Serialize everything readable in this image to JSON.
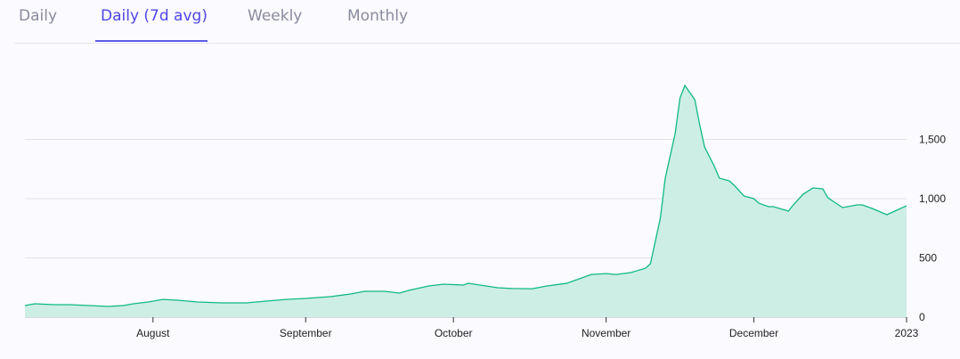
{
  "tabs": [
    {
      "label": "Daily",
      "active": false
    },
    {
      "label": "Daily (7d avg)",
      "active": true
    },
    {
      "label": "Weekly",
      "active": false
    },
    {
      "label": "Monthly",
      "active": false
    }
  ],
  "colors": {
    "accent": "#4f46e5",
    "line": "#10b981",
    "fill": "#cdeee5",
    "grid": "#e2e2ea"
  },
  "chart_data": {
    "type": "area",
    "title": "",
    "xlabel": "",
    "ylabel": "",
    "xlim": [
      "2022-07-06",
      "2023-01-01"
    ],
    "ylim": [
      0,
      2000
    ],
    "grid": true,
    "y_ticks": [
      {
        "value": 0,
        "label": "0"
      },
      {
        "value": 500,
        "label": "500"
      },
      {
        "value": 1000,
        "label": "1,000"
      },
      {
        "value": 1500,
        "label": "1,500"
      }
    ],
    "x_ticks": [
      {
        "date": "2022-08-01",
        "label": "August"
      },
      {
        "date": "2022-09-01",
        "label": "September"
      },
      {
        "date": "2022-10-01",
        "label": "October"
      },
      {
        "date": "2022-11-01",
        "label": "November"
      },
      {
        "date": "2022-12-01",
        "label": "December"
      },
      {
        "date": "2023-01-01",
        "label": "2023"
      }
    ],
    "series": [
      {
        "name": "Daily (7d avg)",
        "points": [
          [
            "2022-07-06",
            98
          ],
          [
            "2022-07-08",
            113
          ],
          [
            "2022-07-12",
            105
          ],
          [
            "2022-07-15",
            105
          ],
          [
            "2022-07-19",
            98
          ],
          [
            "2022-07-23",
            90
          ],
          [
            "2022-07-26",
            98
          ],
          [
            "2022-07-28",
            113
          ],
          [
            "2022-07-31",
            128
          ],
          [
            "2022-08-03",
            150
          ],
          [
            "2022-08-06",
            143
          ],
          [
            "2022-08-10",
            128
          ],
          [
            "2022-08-15",
            120
          ],
          [
            "2022-08-20",
            120
          ],
          [
            "2022-08-24",
            135
          ],
          [
            "2022-08-28",
            150
          ],
          [
            "2022-09-01",
            158
          ],
          [
            "2022-09-06",
            173
          ],
          [
            "2022-09-10",
            195
          ],
          [
            "2022-09-13",
            218
          ],
          [
            "2022-09-17",
            218
          ],
          [
            "2022-09-20",
            203
          ],
          [
            "2022-09-22",
            226
          ],
          [
            "2022-09-26",
            263
          ],
          [
            "2022-09-29",
            278
          ],
          [
            "2022-10-03",
            271
          ],
          [
            "2022-10-04",
            286
          ],
          [
            "2022-10-10",
            248
          ],
          [
            "2022-10-13",
            241
          ],
          [
            "2022-10-17",
            240
          ],
          [
            "2022-10-20",
            263
          ],
          [
            "2022-10-24",
            286
          ],
          [
            "2022-10-27",
            330
          ],
          [
            "2022-10-29",
            360
          ],
          [
            "2022-11-01",
            368
          ],
          [
            "2022-11-03",
            360
          ],
          [
            "2022-11-06",
            376
          ],
          [
            "2022-11-09",
            413
          ],
          [
            "2022-11-10",
            451
          ],
          [
            "2022-11-12",
            835
          ],
          [
            "2022-11-13",
            1173
          ],
          [
            "2022-11-15",
            1549
          ],
          [
            "2022-11-16",
            1850
          ],
          [
            "2022-11-17",
            1955
          ],
          [
            "2022-11-19",
            1835
          ],
          [
            "2022-11-20",
            1624
          ],
          [
            "2022-11-21",
            1436
          ],
          [
            "2022-11-23",
            1271
          ],
          [
            "2022-11-24",
            1173
          ],
          [
            "2022-11-26",
            1150
          ],
          [
            "2022-11-27",
            1113
          ],
          [
            "2022-11-29",
            1022
          ],
          [
            "2022-12-01",
            1000
          ],
          [
            "2022-12-02",
            962
          ],
          [
            "2022-12-04",
            932
          ],
          [
            "2022-12-05",
            932
          ],
          [
            "2022-12-08",
            895
          ],
          [
            "2022-12-09",
            947
          ],
          [
            "2022-12-11",
            1038
          ],
          [
            "2022-12-13",
            1090
          ],
          [
            "2022-12-15",
            1083
          ],
          [
            "2022-12-16",
            1008
          ],
          [
            "2022-12-19",
            925
          ],
          [
            "2022-12-22",
            947
          ],
          [
            "2022-12-23",
            947
          ],
          [
            "2022-12-25",
            917
          ],
          [
            "2022-12-28",
            865
          ],
          [
            "2022-12-30",
            902
          ],
          [
            "2023-01-01",
            940
          ]
        ]
      }
    ]
  }
}
